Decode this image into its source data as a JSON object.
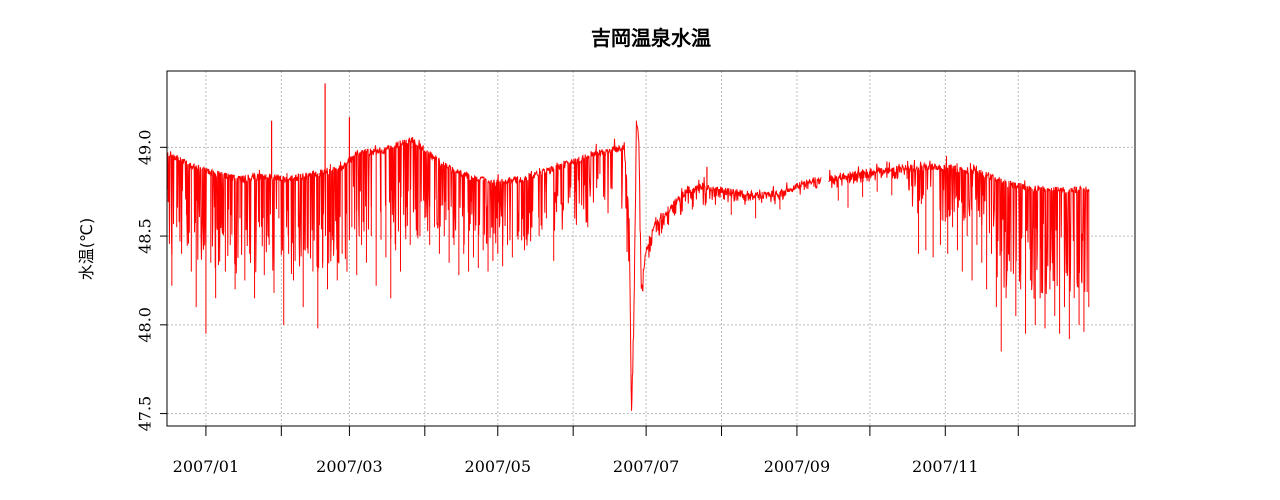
{
  "chart_data": {
    "type": "line",
    "title": "吉岡温泉水温",
    "xlabel": "",
    "ylabel": "水温(℃)",
    "x_range": [
      "2006-12-16",
      "2008-01-18"
    ],
    "ylim": [
      47.43,
      49.43
    ],
    "y_ticks": [
      {
        "value": 47.5,
        "label": "47.5"
      },
      {
        "value": 48.0,
        "label": "48.0"
      },
      {
        "value": 48.5,
        "label": "48.5"
      },
      {
        "value": 49.0,
        "label": "49.0"
      }
    ],
    "x_ticks": [
      {
        "date": "2007-01-01",
        "label": "2007/01"
      },
      {
        "date": "2007-02-01",
        "label": ""
      },
      {
        "date": "2007-03-01",
        "label": "2007/03"
      },
      {
        "date": "2007-04-01",
        "label": ""
      },
      {
        "date": "2007-05-01",
        "label": "2007/05"
      },
      {
        "date": "2007-06-01",
        "label": ""
      },
      {
        "date": "2007-07-01",
        "label": "2007/07"
      },
      {
        "date": "2007-08-01",
        "label": ""
      },
      {
        "date": "2007-09-01",
        "label": "2007/09"
      },
      {
        "date": "2007-10-01",
        "label": ""
      },
      {
        "date": "2007-11-01",
        "label": "2007/11"
      },
      {
        "date": "2007-12-01",
        "label": ""
      }
    ],
    "grid": true,
    "legend": "none",
    "line_color": "#ff0000",
    "gaps": [
      [
        "2007-09-11",
        "2007-09-14"
      ]
    ],
    "series": [
      {
        "points": [
          [
            "2006-12-16",
            48.97
          ],
          [
            "2006-12-25",
            48.9
          ],
          [
            "2007-01-05",
            48.85
          ],
          [
            "2007-01-15",
            48.82
          ],
          [
            "2007-01-25",
            48.84
          ],
          [
            "2007-02-05",
            48.82
          ],
          [
            "2007-02-15",
            48.85
          ],
          [
            "2007-02-25",
            48.88
          ],
          [
            "2007-03-05",
            48.97
          ],
          [
            "2007-03-15",
            48.98
          ],
          [
            "2007-03-22",
            49.02
          ],
          [
            "2007-03-27",
            49.04
          ],
          [
            "2007-04-03",
            48.96
          ],
          [
            "2007-04-10",
            48.89
          ],
          [
            "2007-04-20",
            48.83
          ],
          [
            "2007-04-30",
            48.8
          ],
          [
            "2007-05-10",
            48.82
          ],
          [
            "2007-05-20",
            48.86
          ],
          [
            "2007-06-01",
            48.92
          ],
          [
            "2007-06-10",
            48.96
          ],
          [
            "2007-06-19",
            48.99
          ],
          [
            "2007-06-22",
            49.01
          ],
          [
            "2007-06-24",
            48.6
          ],
          [
            "2007-06-25",
            47.5
          ],
          [
            "2007-06-26",
            48.1
          ],
          [
            "2007-06-27",
            49.14
          ],
          [
            "2007-06-28",
            49.05
          ],
          [
            "2007-06-29",
            48.2
          ],
          [
            "2007-07-01",
            48.42
          ],
          [
            "2007-07-04",
            48.55
          ],
          [
            "2007-07-08",
            48.62
          ],
          [
            "2007-07-13",
            48.69
          ],
          [
            "2007-07-18",
            48.76
          ],
          [
            "2007-07-25",
            48.78
          ],
          [
            "2007-08-01",
            48.76
          ],
          [
            "2007-08-10",
            48.74
          ],
          [
            "2007-08-20",
            48.73
          ],
          [
            "2007-08-28",
            48.76
          ],
          [
            "2007-09-04",
            48.8
          ],
          [
            "2007-09-11",
            48.82
          ],
          [
            "2007-09-14",
            48.82
          ],
          [
            "2007-09-25",
            48.85
          ],
          [
            "2007-10-05",
            48.87
          ],
          [
            "2007-10-15",
            48.88
          ],
          [
            "2007-10-25",
            48.89
          ],
          [
            "2007-11-05",
            48.88
          ],
          [
            "2007-11-15",
            48.86
          ],
          [
            "2007-11-25",
            48.8
          ],
          [
            "2007-12-05",
            48.77
          ],
          [
            "2007-12-15",
            48.76
          ],
          [
            "2007-12-23",
            48.76
          ],
          [
            "2007-12-30",
            48.76
          ]
        ]
      }
    ],
    "dips": [
      [
        "2006-12-18",
        48.22
      ],
      [
        "2006-12-20",
        48.55
      ],
      [
        "2006-12-22",
        48.4
      ],
      [
        "2006-12-24",
        48.62
      ],
      [
        "2006-12-26",
        48.3
      ],
      [
        "2006-12-28",
        48.1
      ],
      [
        "2006-12-30",
        48.5
      ],
      [
        "2007-01-01",
        47.95
      ],
      [
        "2007-01-03",
        48.35
      ],
      [
        "2007-01-05",
        48.15
      ],
      [
        "2007-01-07",
        48.55
      ],
      [
        "2007-01-09",
        48.3
      ],
      [
        "2007-01-11",
        48.45
      ],
      [
        "2007-01-13",
        48.2
      ],
      [
        "2007-01-15",
        48.6
      ],
      [
        "2007-01-17",
        48.25
      ],
      [
        "2007-01-19",
        48.4
      ],
      [
        "2007-01-21",
        48.15
      ],
      [
        "2007-01-23",
        48.55
      ],
      [
        "2007-01-25",
        48.28
      ],
      [
        "2007-01-27",
        48.45
      ],
      [
        "2007-01-29",
        48.18
      ],
      [
        "2007-01-31",
        48.6
      ],
      [
        "2007-02-02",
        48.0
      ],
      [
        "2007-02-04",
        48.4
      ],
      [
        "2007-02-06",
        48.25
      ],
      [
        "2007-02-08",
        48.55
      ],
      [
        "2007-02-10",
        48.1
      ],
      [
        "2007-02-12",
        48.45
      ],
      [
        "2007-02-14",
        48.3
      ],
      [
        "2007-02-16",
        47.98
      ],
      [
        "2007-02-18",
        48.35
      ],
      [
        "2007-02-20",
        48.2
      ],
      [
        "2007-02-22",
        48.5
      ],
      [
        "2007-02-24",
        48.25
      ],
      [
        "2007-02-26",
        48.4
      ],
      [
        "2007-02-28",
        48.3
      ],
      [
        "2007-03-02",
        48.55
      ],
      [
        "2007-03-04",
        48.28
      ],
      [
        "2007-03-06",
        48.45
      ],
      [
        "2007-03-08",
        48.35
      ],
      [
        "2007-03-10",
        48.5
      ],
      [
        "2007-03-12",
        48.22
      ],
      [
        "2007-03-14",
        48.48
      ],
      [
        "2007-03-16",
        48.38
      ],
      [
        "2007-03-18",
        48.15
      ],
      [
        "2007-03-20",
        48.42
      ],
      [
        "2007-03-22",
        48.3
      ],
      [
        "2007-03-24",
        48.55
      ],
      [
        "2007-03-26",
        48.45
      ],
      [
        "2007-03-28",
        48.65
      ],
      [
        "2007-03-30",
        48.5
      ],
      [
        "2007-04-01",
        48.6
      ],
      [
        "2007-04-03",
        48.45
      ],
      [
        "2007-04-05",
        48.55
      ],
      [
        "2007-04-07",
        48.4
      ],
      [
        "2007-04-09",
        48.5
      ],
      [
        "2007-04-11",
        48.35
      ],
      [
        "2007-04-13",
        48.45
      ],
      [
        "2007-04-15",
        48.28
      ],
      [
        "2007-04-17",
        48.4
      ],
      [
        "2007-04-19",
        48.3
      ],
      [
        "2007-04-21",
        48.38
      ],
      [
        "2007-04-23",
        48.32
      ],
      [
        "2007-04-25",
        48.42
      ],
      [
        "2007-04-27",
        48.3
      ],
      [
        "2007-04-29",
        48.36
      ],
      [
        "2007-05-01",
        48.4
      ],
      [
        "2007-05-03",
        48.33
      ],
      [
        "2007-05-05",
        48.45
      ],
      [
        "2007-05-07",
        48.38
      ],
      [
        "2007-05-09",
        48.5
      ],
      [
        "2007-05-12",
        48.42
      ],
      [
        "2007-05-15",
        48.55
      ],
      [
        "2007-05-18",
        48.5
      ],
      [
        "2007-05-21",
        48.6
      ],
      [
        "2007-05-24",
        48.36
      ],
      [
        "2007-05-28",
        48.7
      ],
      [
        "2007-06-02",
        48.75
      ],
      [
        "2007-06-07",
        48.55
      ],
      [
        "2007-06-12",
        48.85
      ],
      [
        "2007-06-17",
        48.88
      ],
      [
        "2007-07-20",
        48.65
      ],
      [
        "2007-08-05",
        48.62
      ],
      [
        "2007-08-15",
        48.6
      ],
      [
        "2007-08-25",
        48.65
      ],
      [
        "2007-09-18",
        48.7
      ],
      [
        "2007-09-22",
        48.66
      ],
      [
        "2007-09-28",
        48.72
      ],
      [
        "2007-10-04",
        48.75
      ],
      [
        "2007-10-10",
        48.73
      ],
      [
        "2007-10-17",
        48.78
      ],
      [
        "2007-10-21",
        48.4
      ],
      [
        "2007-10-24",
        48.42
      ],
      [
        "2007-10-27",
        48.38
      ],
      [
        "2007-10-30",
        48.45
      ],
      [
        "2007-11-02",
        48.4
      ],
      [
        "2007-11-04",
        48.55
      ],
      [
        "2007-11-06",
        48.42
      ],
      [
        "2007-11-08",
        48.3
      ],
      [
        "2007-11-10",
        48.5
      ],
      [
        "2007-11-12",
        48.25
      ],
      [
        "2007-11-14",
        48.45
      ],
      [
        "2007-11-16",
        48.35
      ],
      [
        "2007-11-18",
        48.2
      ],
      [
        "2007-11-20",
        48.4
      ],
      [
        "2007-11-22",
        48.1
      ],
      [
        "2007-11-24",
        47.85
      ],
      [
        "2007-11-26",
        48.15
      ],
      [
        "2007-11-28",
        48.3
      ],
      [
        "2007-11-30",
        48.05
      ],
      [
        "2007-12-02",
        48.2
      ],
      [
        "2007-12-04",
        47.95
      ],
      [
        "2007-12-06",
        48.25
      ],
      [
        "2007-12-08",
        48.0
      ],
      [
        "2007-12-10",
        48.15
      ],
      [
        "2007-12-12",
        47.98
      ],
      [
        "2007-12-14",
        48.2
      ],
      [
        "2007-12-16",
        48.05
      ],
      [
        "2007-12-18",
        47.95
      ],
      [
        "2007-12-20",
        48.1
      ],
      [
        "2007-12-22",
        47.92
      ],
      [
        "2007-12-24",
        48.15
      ],
      [
        "2007-12-26",
        48.0
      ],
      [
        "2007-12-28",
        47.96
      ],
      [
        "2007-12-30",
        48.1
      ]
    ],
    "spikes": [
      [
        "2007-01-28",
        49.15
      ],
      [
        "2007-02-19",
        49.36
      ],
      [
        "2007-03-01",
        49.17
      ],
      [
        "2007-07-26",
        48.89
      ],
      [
        "2007-10-08",
        48.92
      ]
    ]
  }
}
